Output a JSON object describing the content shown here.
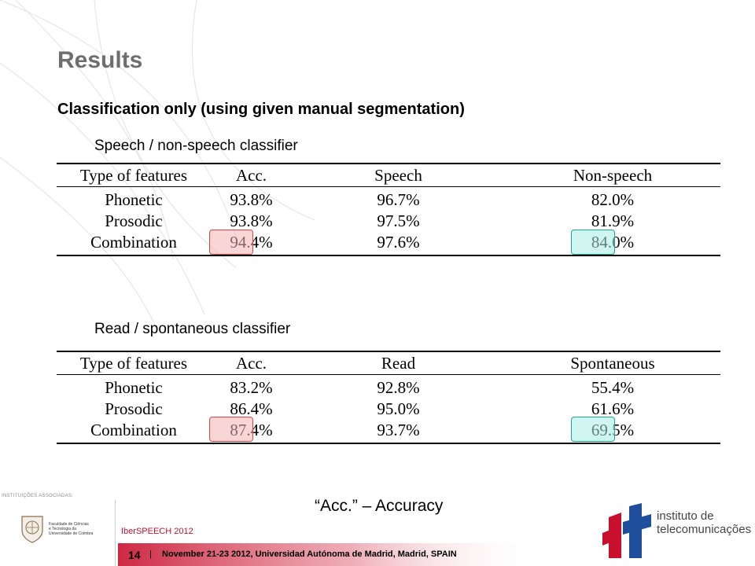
{
  "slide": {
    "title": "Results",
    "subtitle": "Classification only (using given manual segmentation)"
  },
  "tables": [
    {
      "label": "Speech / non-speech classifier",
      "headers": [
        "Type of features",
        "Acc.",
        "Speech",
        "Non-speech"
      ],
      "rows": [
        [
          "Phonetic",
          "93.8%",
          "96.7%",
          "82.0%"
        ],
        [
          "Prosodic",
          "93.8%",
          "97.5%",
          "81.9%"
        ],
        [
          "Combination",
          "94.4%",
          "97.6%",
          "84.0%"
        ]
      ]
    },
    {
      "label": "Read / spontaneous classifier",
      "headers": [
        "Type of features",
        "Acc.",
        "Read",
        "Spontaneous"
      ],
      "rows": [
        [
          "Phonetic",
          "83.2%",
          "92.8%",
          "55.4%"
        ],
        [
          "Prosodic",
          "86.4%",
          "95.0%",
          "61.6%"
        ],
        [
          "Combination",
          "87.4%",
          "93.7%",
          "69.5%"
        ]
      ]
    }
  ],
  "highlight_colors": {
    "red": "#e04444",
    "teal": "#1aa890"
  },
  "note": "“Acc.” – Accuracy",
  "footer": {
    "associated_label": "INSTITUIÇÕES ASSOCIADAS:",
    "uc_text": [
      "Faculdade de Ciências",
      "e Tecnologia da",
      "Universidade de Coimbra"
    ],
    "conference": "IberSPEECH 2012",
    "page_number": "14",
    "separator": "|",
    "event_text": "November 21-23 2012, Universidad Autónoma de Madrid, Madrid, SPAIN",
    "it_lines": [
      "instituto de",
      "telecomunicações"
    ],
    "brand_red": "#c8102e",
    "brand_blue": "#1f4e9c"
  }
}
